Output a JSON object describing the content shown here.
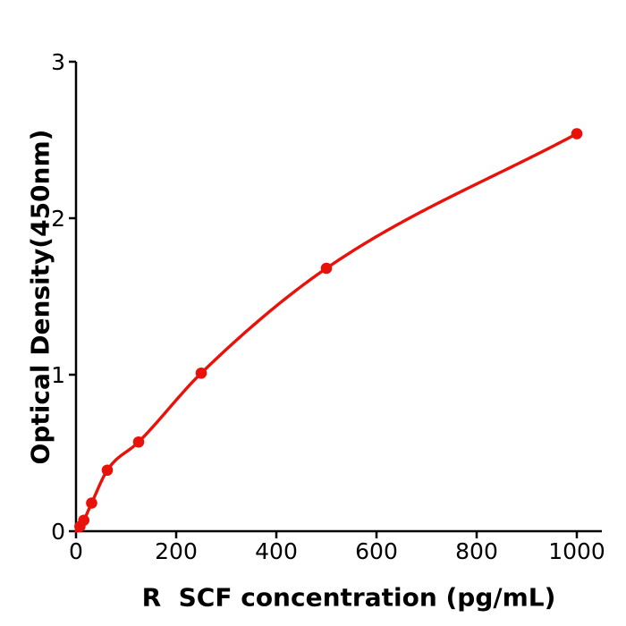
{
  "figure": {
    "background_color": "#ffffff",
    "axis_color": "#000000",
    "series_color": "#e8120a"
  },
  "chart_data": {
    "type": "scatter",
    "title": "",
    "xlabel": "R  SCF concentration (pg/mL)",
    "ylabel": "Optical Density(450nm)",
    "x": [
      7.8,
      15.6,
      31.2,
      62.5,
      125,
      250,
      500,
      1000
    ],
    "y": [
      0.03,
      0.07,
      0.18,
      0.39,
      0.57,
      1.01,
      1.68,
      2.54
    ],
    "curve_start": [
      0,
      0
    ],
    "fit_curve": true,
    "marker": "circle",
    "series_color": "#e8120a",
    "xlim": [
      0,
      1050
    ],
    "ylim": [
      0,
      3
    ],
    "xticks": [
      0,
      200,
      400,
      600,
      800,
      1000
    ],
    "yticks": [
      0,
      1,
      2,
      3
    ],
    "grid": false,
    "legend": null
  }
}
